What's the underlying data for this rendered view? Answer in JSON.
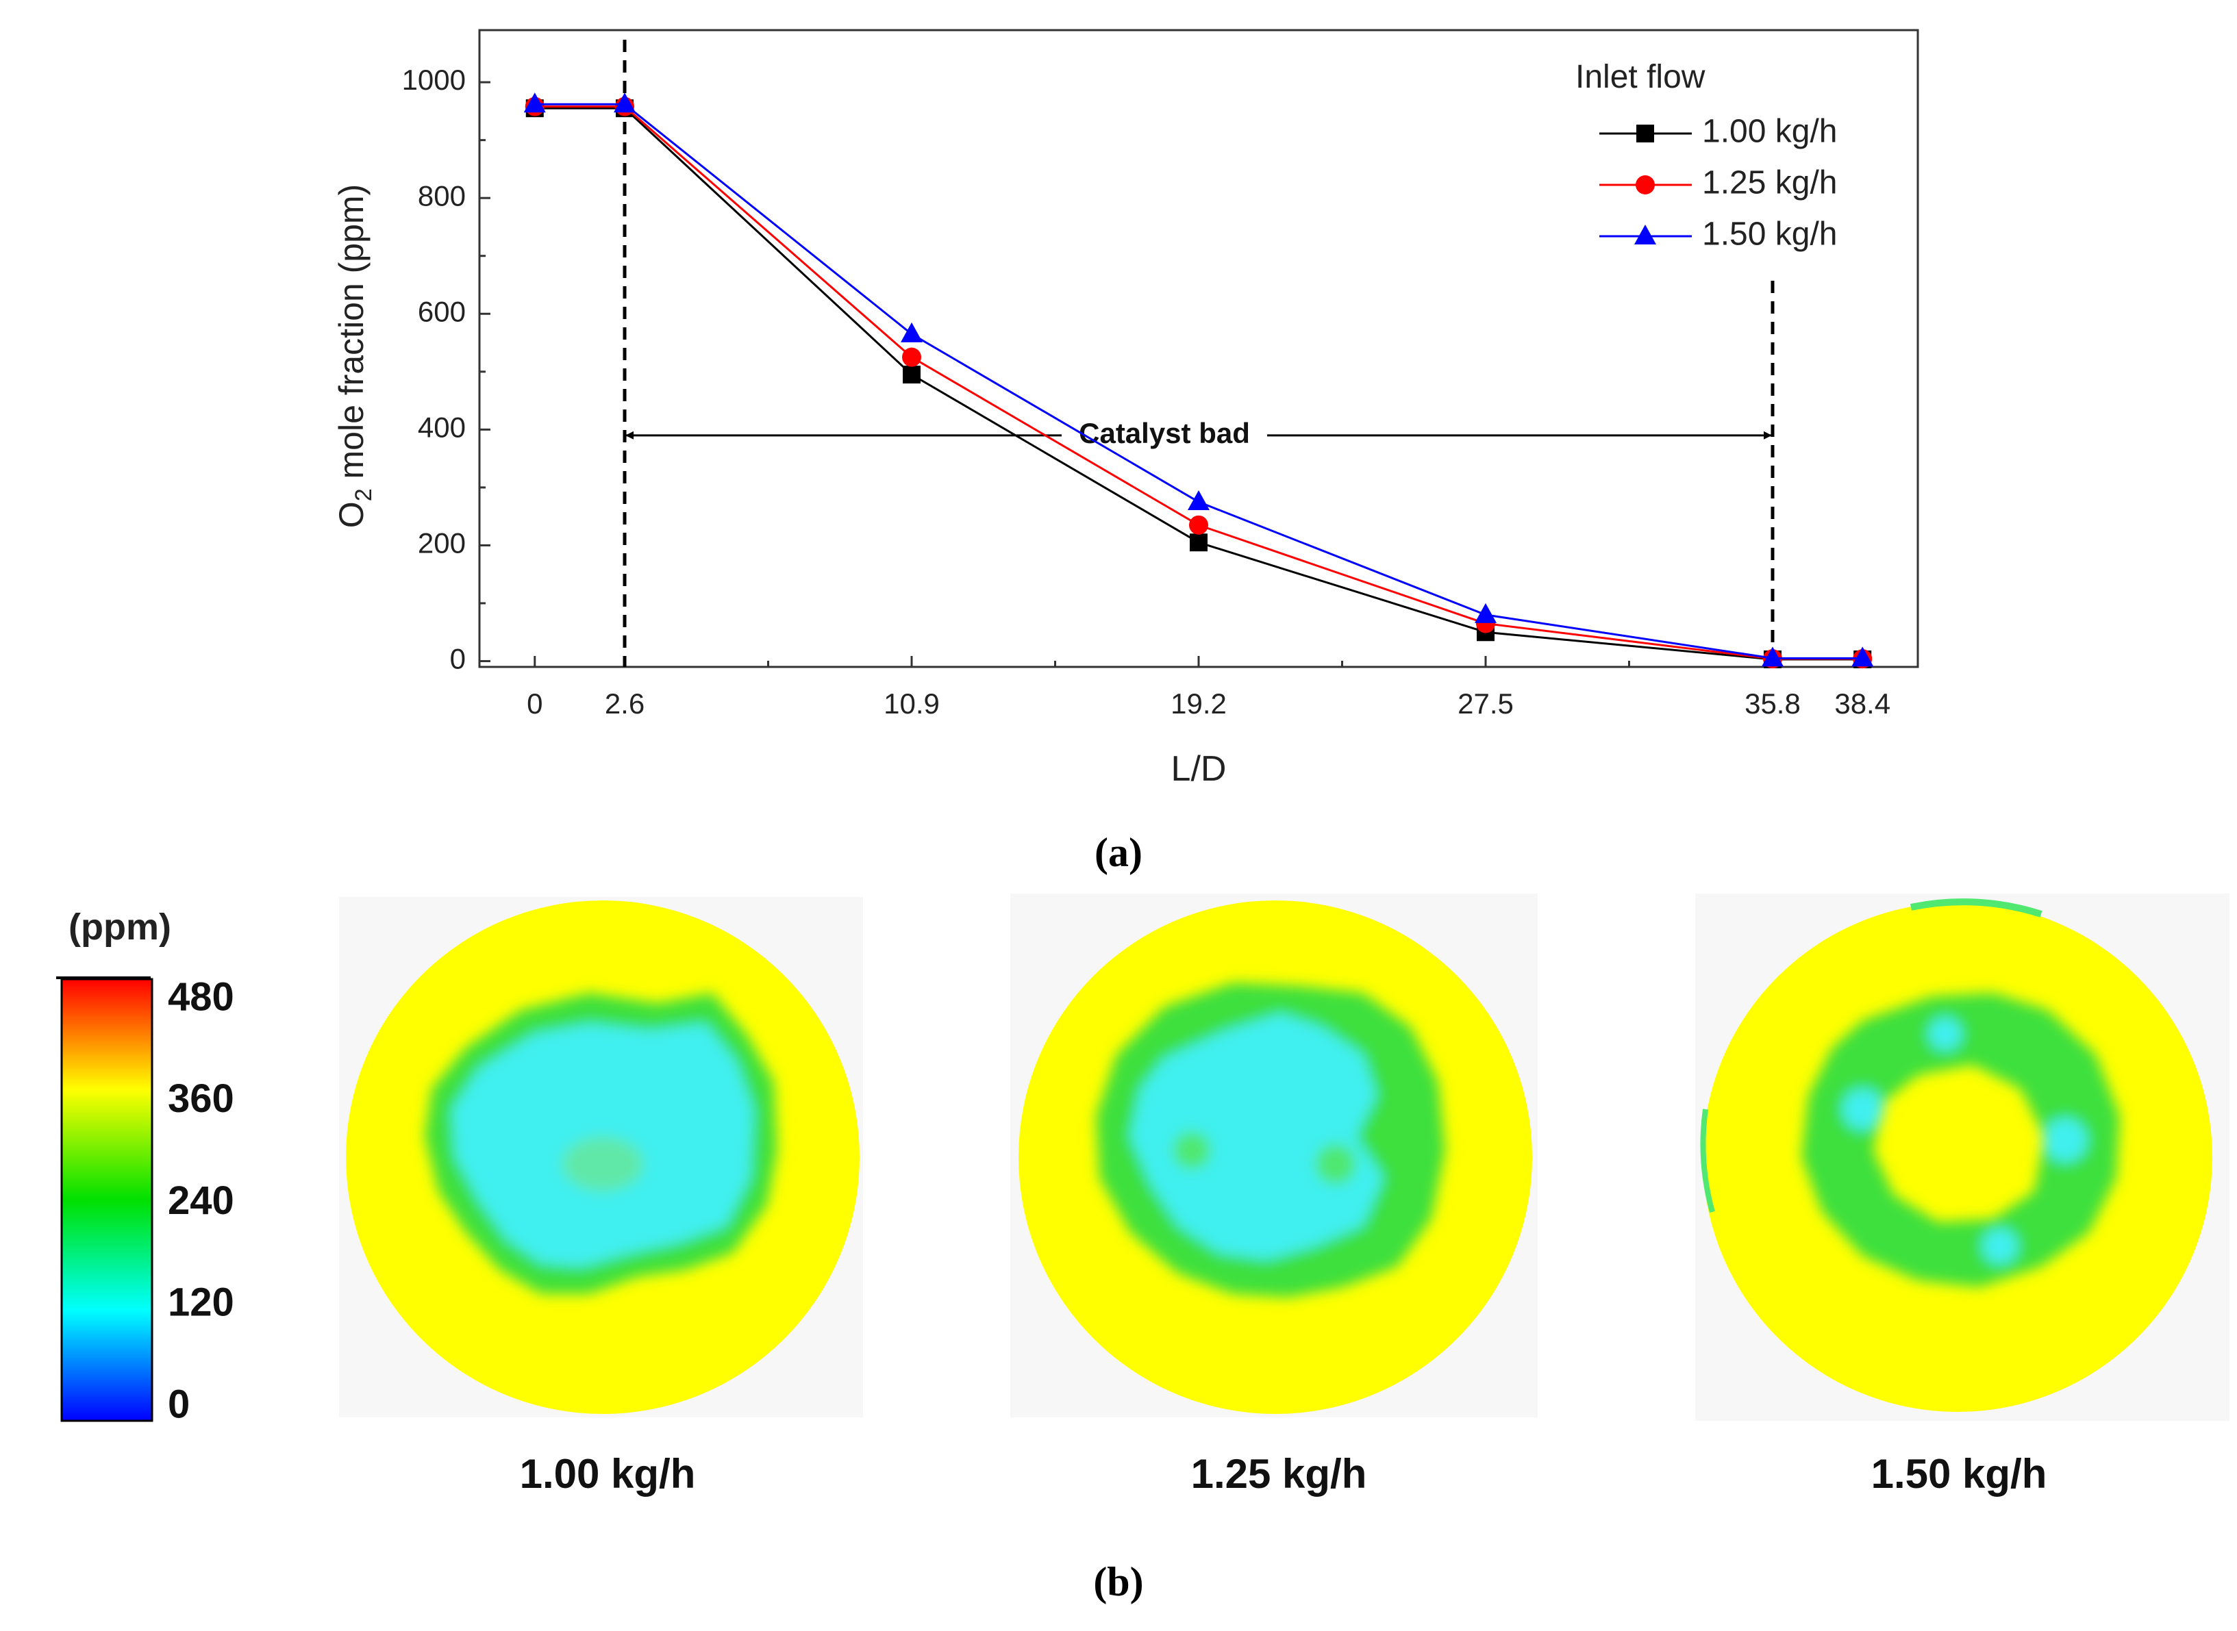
{
  "chart_data": {
    "type": "line",
    "panel_label": "(a)",
    "xlabel": "L/D",
    "ylabel_prefix": "O",
    "ylabel_subscript": "2",
    "ylabel_suffix": " mole  fraction (ppm)",
    "x": [
      0,
      2.6,
      10.9,
      19.2,
      27.5,
      35.8,
      38.4
    ],
    "x_tick_labels": [
      "0",
      "2.6",
      "10.9",
      "19.2",
      "27.5",
      "35.8",
      "38.4"
    ],
    "y_ticks": [
      0,
      200,
      400,
      600,
      800,
      1000
    ],
    "y_tick_labels": [
      "0",
      "200",
      "400",
      "600",
      "800",
      "1000"
    ],
    "xlim": [
      -1.6,
      40.0
    ],
    "ylim": [
      -10,
      1090
    ],
    "legend_title": "Inlet flow",
    "legend_position": "top-right",
    "series": [
      {
        "name": "1.00 kg/h",
        "color": "#000000",
        "marker": "square",
        "values": [
          955,
          955,
          495,
          205,
          50,
          3,
          3
        ]
      },
      {
        "name": "1.25  kg/h",
        "color": "#ff0000",
        "marker": "circle",
        "values": [
          958,
          958,
          525,
          235,
          65,
          4,
          4
        ]
      },
      {
        "name": "1.50  kg/h",
        "color": "#0000ff",
        "marker": "triangle",
        "values": [
          962,
          962,
          565,
          275,
          80,
          5,
          5
        ]
      }
    ],
    "vlines": [
      2.6,
      35.8
    ],
    "annotation": {
      "text": "Catalyst bad",
      "from": 2.6,
      "to": 35.8,
      "y": 390
    }
  },
  "panel_b": {
    "label": "(b)",
    "colorbar": {
      "unit": "(ppm)",
      "ticks": [
        "480",
        "360",
        "240",
        "120",
        "0"
      ],
      "stops": [
        "#0000ff",
        "#00ffff",
        "#00e000",
        "#ffff00",
        "#ff0000"
      ]
    },
    "maps": [
      {
        "label": "1.00 kg/h"
      },
      {
        "label": "1.25 kg/h"
      },
      {
        "label": "1.50 kg/h"
      }
    ],
    "colors": {
      "yellow": "#ffff00",
      "green": "#3ee03e",
      "cyan": "#40f0f0"
    }
  }
}
